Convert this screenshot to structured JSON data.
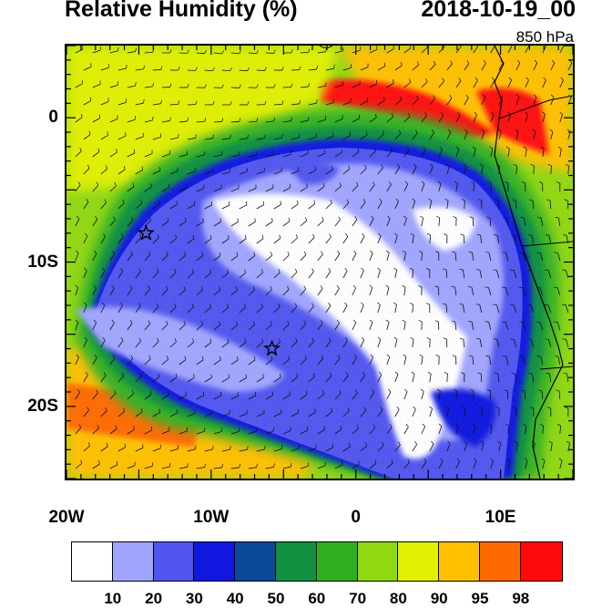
{
  "header": {
    "title": "Relative Humidity (%)",
    "datetime": "2018-10-19_00",
    "level": "850 hPa"
  },
  "axes": {
    "lat_labels": [
      {
        "label": "0",
        "lat": 0
      },
      {
        "label": "10S",
        "lat": -10
      },
      {
        "label": "20S",
        "lat": -20
      }
    ],
    "lon_labels": [
      {
        "label": "20W",
        "lon": -20
      },
      {
        "label": "10W",
        "lon": -10
      },
      {
        "label": "0",
        "lon": 0
      },
      {
        "label": "10E",
        "lon": 10
      }
    ],
    "lat_range": [
      -25,
      5
    ],
    "lon_range": [
      -20,
      15
    ]
  },
  "markers": [
    {
      "name": "star",
      "lat": -8,
      "lon": -14.5
    },
    {
      "name": "star",
      "lat": -16,
      "lon": -5.8
    }
  ],
  "colorbar": {
    "colors": [
      "#ffffff",
      "#a0a5ff",
      "#5055f0",
      "#1018e0",
      "#0a4a98",
      "#109040",
      "#30b020",
      "#90d810",
      "#e0f000",
      "#ffc000",
      "#ff6a00",
      "#ff0a0a"
    ],
    "labels": [
      "10",
      "20",
      "30",
      "40",
      "50",
      "60",
      "70",
      "80",
      "90",
      "95",
      "98"
    ]
  }
}
